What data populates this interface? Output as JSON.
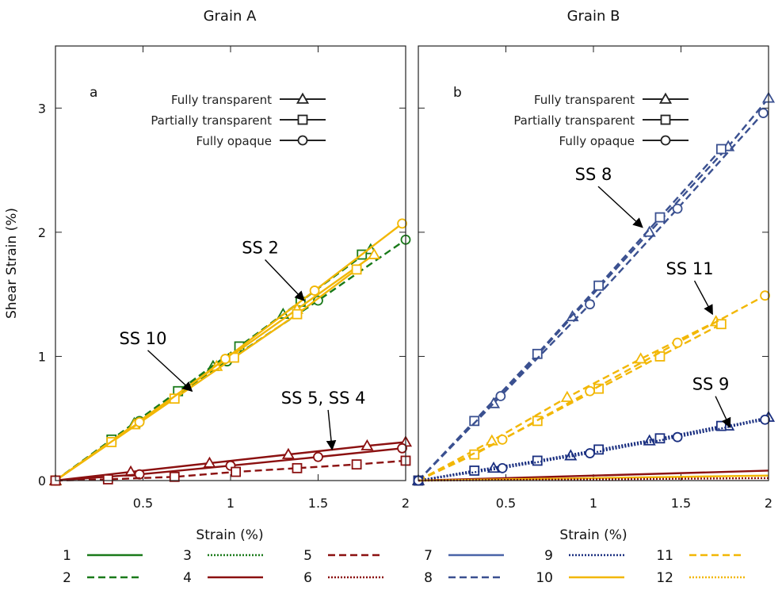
{
  "chart_data": [
    {
      "type": "line",
      "panel_letter": "a",
      "title": "Grain A",
      "xlabel": "Strain (%)",
      "ylabel": "Shear Strain (%)",
      "xlim": [
        0,
        2
      ],
      "ylim": [
        0,
        3.5
      ],
      "x_ticks": [
        0.5,
        1,
        1.5,
        2
      ],
      "x_tick_labels": [
        "0.5",
        "1",
        "1.5",
        "2"
      ],
      "y_ticks": [
        0,
        1,
        2,
        3
      ],
      "y_tick_labels": [
        "0",
        "1",
        "2",
        "3"
      ],
      "legend_position": "top-right",
      "marker_legend": [
        {
          "label": "Fully transparent",
          "marker": "triangle"
        },
        {
          "label": "Partially transparent",
          "marker": "square"
        },
        {
          "label": "Fully opaque",
          "marker": "circle"
        }
      ],
      "annotations": [
        {
          "text": "SS 2",
          "x": 1.17,
          "y": 1.83,
          "ax": 1.42,
          "ay": 1.45
        },
        {
          "text": "SS 10",
          "x": 0.5,
          "y": 1.1,
          "ax": 0.78,
          "ay": 0.72
        },
        {
          "text": "SS 5, SS 4",
          "x": 1.53,
          "y": 0.62,
          "ax": 1.58,
          "ay": 0.25
        }
      ],
      "series": [
        {
          "system": 2,
          "marker": "triangle",
          "x": [
            0,
            0.45,
            0.9,
            1.3,
            1.8
          ],
          "y": [
            0,
            0.46,
            0.92,
            1.34,
            1.86
          ]
        },
        {
          "system": 2,
          "marker": "square",
          "x": [
            0,
            0.32,
            0.7,
            1.05,
            1.4,
            1.75
          ],
          "y": [
            0,
            0.33,
            0.72,
            1.08,
            1.44,
            1.82
          ]
        },
        {
          "system": 2,
          "marker": "circle",
          "x": [
            0,
            0.48,
            0.98,
            1.5,
            2.0
          ],
          "y": [
            0,
            0.48,
            0.96,
            1.45,
            1.94
          ]
        },
        {
          "system": 10,
          "marker": "triangle",
          "x": [
            0,
            0.45,
            0.92,
            1.38,
            1.82
          ],
          "y": [
            0,
            0.45,
            0.92,
            1.38,
            1.82
          ]
        },
        {
          "system": 10,
          "marker": "square",
          "x": [
            0,
            0.32,
            0.68,
            1.02,
            1.38,
            1.72
          ],
          "y": [
            0,
            0.31,
            0.66,
            0.99,
            1.34,
            1.7
          ]
        },
        {
          "system": 10,
          "marker": "circle",
          "x": [
            0,
            0.48,
            0.97,
            1.48,
            1.98
          ],
          "y": [
            0,
            0.47,
            0.98,
            1.53,
            2.07
          ]
        },
        {
          "system": 4,
          "marker": "triangle",
          "x": [
            0,
            0.43,
            0.88,
            1.33,
            1.78,
            2.0
          ],
          "y": [
            0,
            0.07,
            0.14,
            0.21,
            0.28,
            0.31
          ]
        },
        {
          "system": 4,
          "marker": "circle",
          "x": [
            0,
            0.48,
            1.0,
            1.5,
            1.98
          ],
          "y": [
            0,
            0.05,
            0.12,
            0.19,
            0.26
          ]
        },
        {
          "system": 5,
          "marker": "square",
          "x": [
            0,
            0.3,
            0.68,
            1.03,
            1.38,
            1.72,
            2.0
          ],
          "y": [
            0,
            0.01,
            0.03,
            0.07,
            0.1,
            0.13,
            0.16
          ]
        }
      ]
    },
    {
      "type": "line",
      "panel_letter": "b",
      "title": "Grain B",
      "xlabel": "Strain (%)",
      "ylabel": "",
      "xlim": [
        0,
        2
      ],
      "ylim": [
        0,
        3.5
      ],
      "x_ticks": [
        0.5,
        1,
        1.5,
        2
      ],
      "x_tick_labels": [
        "0.5",
        "1",
        "1.5",
        "2"
      ],
      "y_ticks": [
        0,
        1,
        2,
        3
      ],
      "legend_position": "top-right",
      "marker_legend": [
        {
          "label": "Fully transparent",
          "marker": "triangle"
        },
        {
          "label": "Partially transparent",
          "marker": "square"
        },
        {
          "label": "Fully opaque",
          "marker": "circle"
        }
      ],
      "annotations": [
        {
          "text": "SS 8",
          "x": 1.0,
          "y": 2.42,
          "ax": 1.28,
          "ay": 2.04
        },
        {
          "text": "SS 11",
          "x": 1.55,
          "y": 1.66,
          "ax": 1.68,
          "ay": 1.34
        },
        {
          "text": "SS 9",
          "x": 1.67,
          "y": 0.73,
          "ax": 1.78,
          "ay": 0.43
        }
      ],
      "series": [
        {
          "system": 8,
          "marker": "triangle",
          "x": [
            0,
            0.43,
            0.88,
            1.32,
            1.77,
            2.0
          ],
          "y": [
            0,
            0.62,
            1.32,
            2.0,
            2.69,
            3.08
          ]
        },
        {
          "system": 8,
          "marker": "square",
          "x": [
            0,
            0.32,
            0.68,
            1.03,
            1.38,
            1.73
          ],
          "y": [
            0,
            0.48,
            1.02,
            1.57,
            2.12,
            2.67
          ]
        },
        {
          "system": 8,
          "marker": "circle",
          "x": [
            0,
            0.47,
            0.98,
            1.48,
            1.97
          ],
          "y": [
            0,
            0.68,
            1.42,
            2.19,
            2.96
          ]
        },
        {
          "system": 11,
          "marker": "triangle",
          "x": [
            0,
            0.42,
            0.85,
            1.27,
            1.7
          ],
          "y": [
            0,
            0.32,
            0.67,
            0.98,
            1.28
          ]
        },
        {
          "system": 11,
          "marker": "square",
          "x": [
            0,
            0.32,
            0.68,
            1.03,
            1.38,
            1.73
          ],
          "y": [
            0,
            0.21,
            0.48,
            0.74,
            1.0,
            1.26
          ]
        },
        {
          "system": 11,
          "marker": "circle",
          "x": [
            0,
            0.48,
            0.98,
            1.48,
            1.98
          ],
          "y": [
            0,
            0.33,
            0.72,
            1.11,
            1.49
          ]
        },
        {
          "system": 9,
          "marker": "triangle",
          "x": [
            0,
            0.43,
            0.87,
            1.32,
            1.77,
            2.0
          ],
          "y": [
            0,
            0.1,
            0.2,
            0.32,
            0.44,
            0.51
          ]
        },
        {
          "system": 9,
          "marker": "square",
          "x": [
            0,
            0.32,
            0.68,
            1.03,
            1.38,
            1.73
          ],
          "y": [
            0,
            0.08,
            0.16,
            0.25,
            0.34,
            0.44
          ]
        },
        {
          "system": 9,
          "marker": "circle",
          "x": [
            0,
            0.48,
            0.98,
            1.48,
            1.98
          ],
          "y": [
            0,
            0.1,
            0.22,
            0.35,
            0.49
          ]
        },
        {
          "system": 4,
          "marker": "none",
          "x": [
            0,
            2.0
          ],
          "y": [
            0,
            0.08
          ]
        },
        {
          "system": 10,
          "marker": "none",
          "x": [
            0,
            2.0
          ],
          "y": [
            0,
            0.04
          ]
        },
        {
          "system": 6,
          "marker": "none",
          "x": [
            0,
            2.0
          ],
          "y": [
            0,
            0.02
          ]
        }
      ]
    }
  ],
  "slip_system_key": [
    {
      "label": "1",
      "color": "#1a7a1a",
      "dash": "solid"
    },
    {
      "label": "2",
      "color": "#1a7a1a",
      "dash": "dashed"
    },
    {
      "label": "3",
      "color": "#1a7a1a",
      "dash": "dotted"
    },
    {
      "label": "4",
      "color": "#8b1010",
      "dash": "solid"
    },
    {
      "label": "5",
      "color": "#8b1010",
      "dash": "dashed"
    },
    {
      "label": "6",
      "color": "#8b1010",
      "dash": "dotted"
    },
    {
      "label": "7",
      "color": "#4a64a8",
      "dash": "solid"
    },
    {
      "label": "8",
      "color": "#3a5090",
      "dash": "dashed"
    },
    {
      "label": "9",
      "color": "#1a2f80",
      "dash": "dotted"
    },
    {
      "label": "10",
      "color": "#f2b705",
      "dash": "solid"
    },
    {
      "label": "11",
      "color": "#f2b705",
      "dash": "dashed"
    },
    {
      "label": "12",
      "color": "#f2b705",
      "dash": "dotted"
    }
  ]
}
